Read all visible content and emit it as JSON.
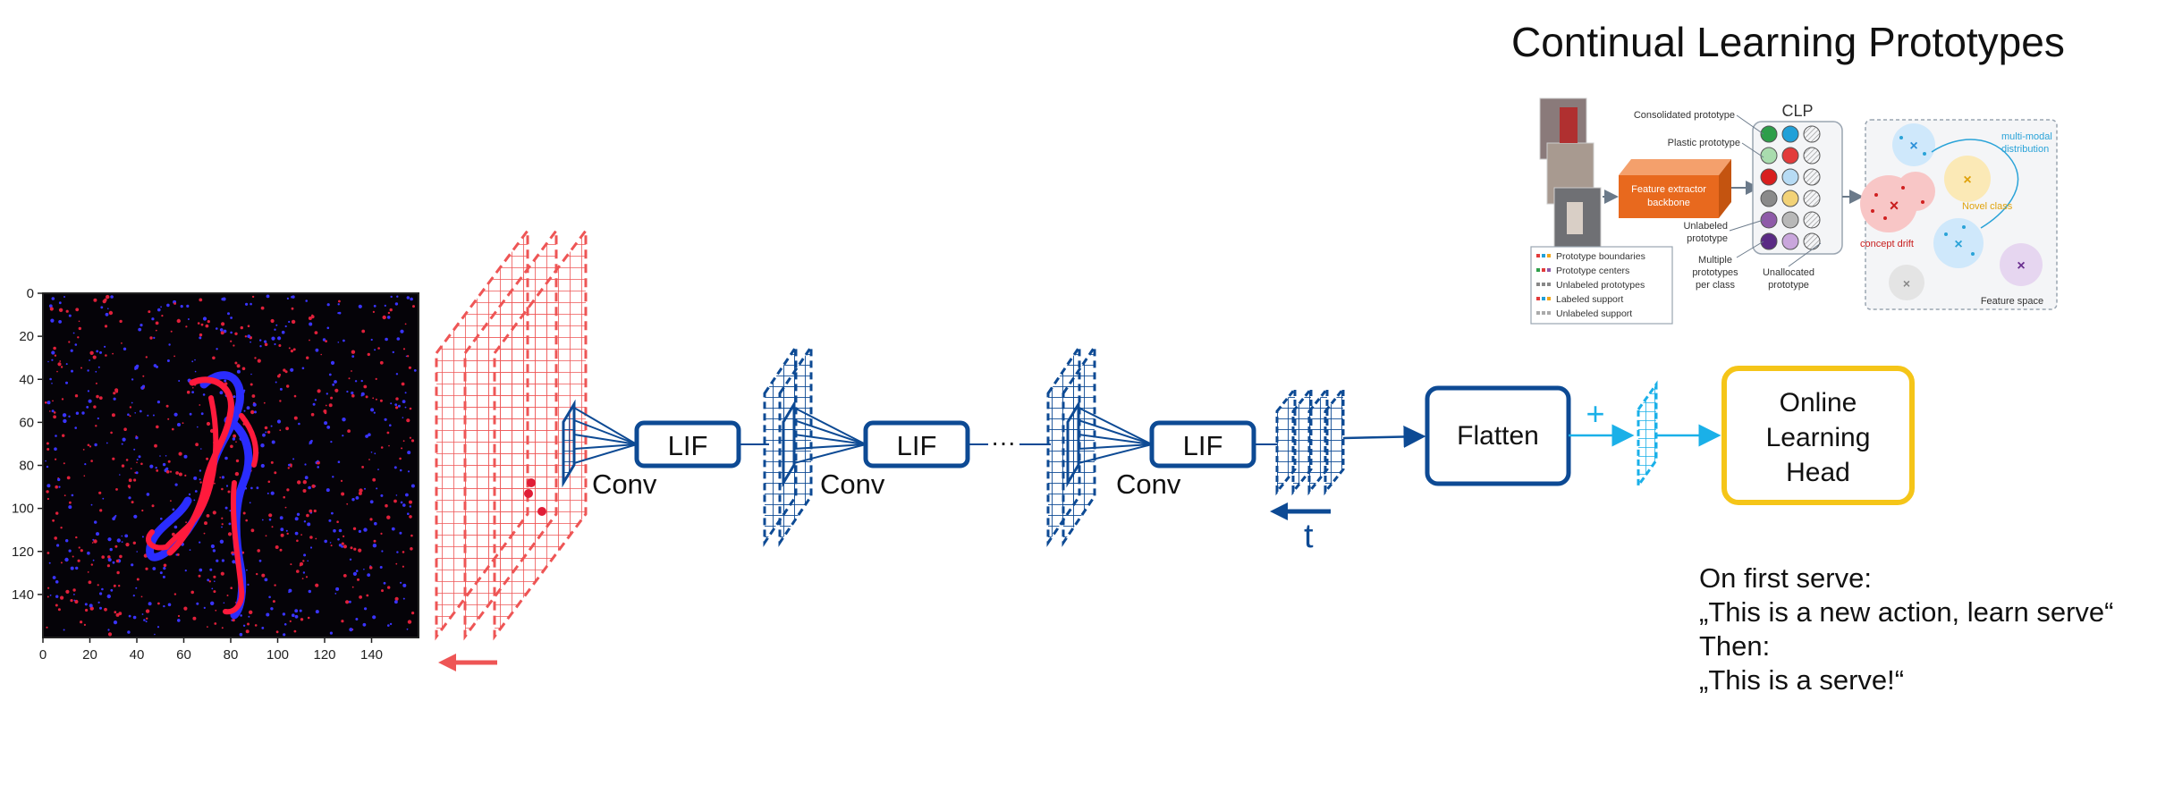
{
  "title": "Continual Learning Prototypes",
  "input_plot": {
    "y_ticks": [
      "0",
      "20",
      "40",
      "60",
      "80",
      "100",
      "120",
      "140"
    ],
    "x_ticks": [
      "0",
      "20",
      "40",
      "60",
      "80",
      "100",
      "120",
      "140"
    ]
  },
  "pipeline": {
    "lif_label": "LIF",
    "conv_label": "Conv",
    "ellipsis": "···",
    "time_label": "t",
    "flatten_label": "Flatten",
    "plus_label": "+",
    "head_label_lines": [
      "Online",
      "Learning",
      "Head"
    ]
  },
  "clp_figure": {
    "clp_label": "CLP",
    "consolidated_prototype": "Consolidated prototype",
    "plastic_prototype": "Plastic prototype",
    "feature_extractor_lines": [
      "Feature extractor",
      "backbone"
    ],
    "unlabeled_prototype_lines": [
      "Unlabeled",
      "prototype"
    ],
    "multiple_prototypes_lines": [
      "Multiple",
      "prototypes",
      "per class"
    ],
    "unallocated_prototype_lines": [
      "Unallocated",
      "prototype"
    ],
    "legend": [
      "Prototype boundaries",
      "Prototype centers",
      "Unlabeled prototypes",
      "Labeled support",
      "Unlabeled support"
    ],
    "multi_modal_lines": [
      "multi-modal",
      "distribution"
    ],
    "novel_class": "Novel class",
    "concept_drift": "concept drift",
    "feature_space": "Feature space"
  },
  "note": {
    "lines": [
      "On first serve:",
      "„This is a new action, learn serve“",
      "Then:",
      "„This is a serve!“"
    ]
  },
  "colors": {
    "dark_blue": "#0d4a94",
    "light_blue": "#1ab0e8",
    "red": "#ee5555",
    "yellow": "#f5c518"
  }
}
